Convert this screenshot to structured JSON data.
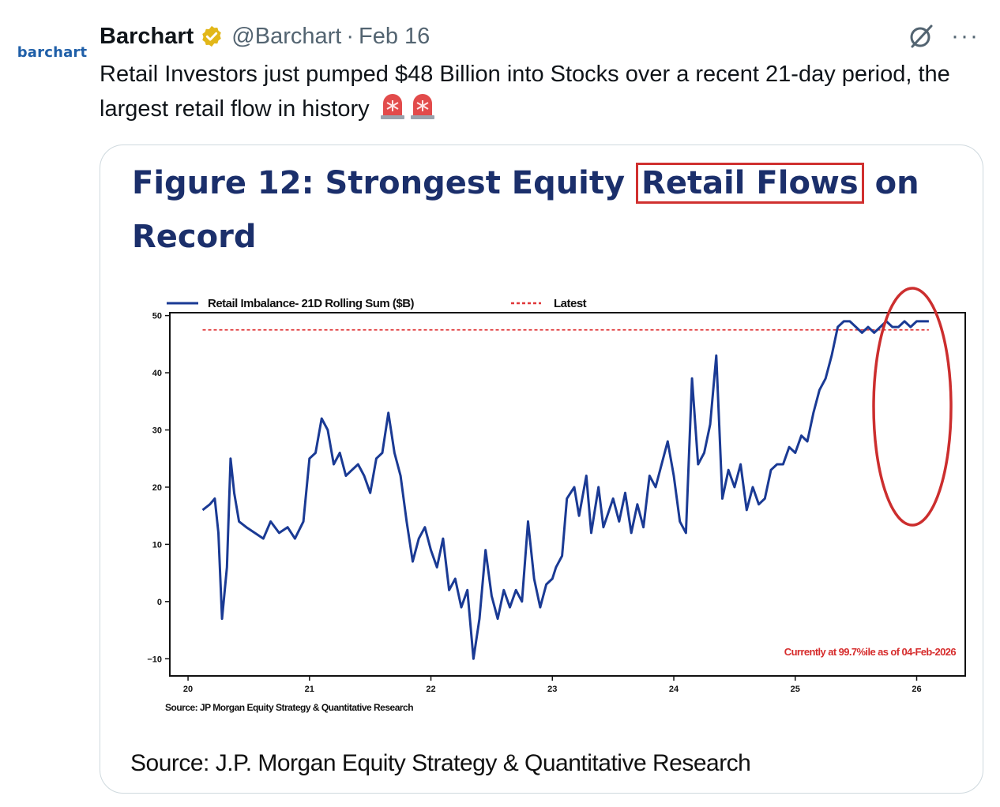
{
  "tweet": {
    "avatar_text": "barchart",
    "display_name": "Barchart",
    "handle": "@Barchart",
    "separator": "·",
    "date": "Feb 16",
    "text": "Retail Investors just pumped $48 Billion into Stocks over a recent 21-day period, the largest retail flow in history",
    "icons": [
      "verified-badge-icon",
      "grok-icon",
      "more-icon",
      "siren-icon",
      "siren-icon"
    ],
    "more_label": "···"
  },
  "figure": {
    "title_pre": "Figure 12: Strongest Equity ",
    "title_highlight": "Retail Flows",
    "title_post": " on Record",
    "source_caption": "Source: J.P. Morgan Equity Strategy & Quantitative Research"
  },
  "chart_data": {
    "type": "line",
    "title": "Figure 12: Strongest Equity Retail Flows on Record",
    "xlabel": "",
    "ylabel": "",
    "ylim": [
      -13,
      50.5
    ],
    "xlim": [
      2019.85,
      2026.4
    ],
    "yticks": [
      50,
      40,
      30,
      20,
      10,
      0,
      -10
    ],
    "ytick_labels": [
      "50",
      "40",
      "30",
      "20",
      "10",
      "0",
      "−10"
    ],
    "xticks": [
      2020,
      2021,
      2022,
      2023,
      2024,
      2025,
      2026
    ],
    "xtick_labels": [
      "20",
      "21",
      "22",
      "23",
      "24",
      "25",
      "26"
    ],
    "legend_position": "top",
    "grid": false,
    "series": [
      {
        "name": "Retail Imbalance- 21D Rolling Sum ($B)",
        "color": "#1a3a94",
        "style": "solid",
        "x": [
          2020.12,
          2020.18,
          2020.22,
          2020.25,
          2020.28,
          2020.32,
          2020.35,
          2020.38,
          2020.42,
          2020.48,
          2020.55,
          2020.62,
          2020.68,
          2020.75,
          2020.82,
          2020.88,
          2020.95,
          2021.0,
          2021.05,
          2021.1,
          2021.15,
          2021.2,
          2021.25,
          2021.3,
          2021.35,
          2021.4,
          2021.45,
          2021.5,
          2021.55,
          2021.6,
          2021.65,
          2021.7,
          2021.75,
          2021.8,
          2021.85,
          2021.9,
          2021.95,
          2022.0,
          2022.05,
          2022.1,
          2022.15,
          2022.2,
          2022.25,
          2022.3,
          2022.35,
          2022.4,
          2022.45,
          2022.5,
          2022.55,
          2022.6,
          2022.65,
          2022.7,
          2022.75,
          2022.8,
          2022.85,
          2022.9,
          2022.95,
          2023.0,
          2023.03,
          2023.08,
          2023.12,
          2023.18,
          2023.22,
          2023.28,
          2023.32,
          2023.38,
          2023.42,
          2023.5,
          2023.55,
          2023.6,
          2023.65,
          2023.7,
          2023.75,
          2023.8,
          2023.85,
          2023.9,
          2023.95,
          2024.0,
          2024.05,
          2024.1,
          2024.15,
          2024.2,
          2024.25,
          2024.3,
          2024.35,
          2024.4,
          2024.45,
          2024.5,
          2024.55,
          2024.6,
          2024.65,
          2024.7,
          2024.75,
          2024.8,
          2024.85,
          2024.9,
          2024.95,
          2025.0,
          2025.05,
          2025.1,
          2025.15,
          2025.2,
          2025.25,
          2025.3,
          2025.35,
          2025.4,
          2025.45,
          2025.5,
          2025.55,
          2025.6,
          2025.65,
          2025.7,
          2025.75,
          2025.8,
          2025.85,
          2025.9,
          2025.95,
          2026.0,
          2026.05,
          2026.1
        ],
        "values": [
          16,
          17,
          18,
          12,
          -3,
          6,
          25,
          19,
          14,
          13,
          12,
          11,
          14,
          12,
          13,
          11,
          14,
          25,
          26,
          32,
          30,
          24,
          26,
          22,
          23,
          24,
          22,
          19,
          25,
          26,
          33,
          26,
          22,
          14,
          7,
          11,
          13,
          9,
          6,
          11,
          2,
          4,
          -1,
          2,
          -10,
          -3,
          9,
          1,
          -3,
          2,
          -1,
          2,
          0,
          14,
          4,
          -1,
          3,
          4,
          6,
          8,
          18,
          20,
          15,
          22,
          12,
          20,
          13,
          18,
          14,
          19,
          12,
          17,
          13,
          22,
          20,
          24,
          28,
          22,
          14,
          12,
          39,
          24,
          26,
          31,
          43,
          18,
          23,
          20,
          24,
          16,
          20,
          17,
          18,
          23,
          24,
          24,
          27,
          26,
          29,
          28,
          33,
          37,
          39,
          43,
          48,
          49,
          49,
          48,
          47,
          48,
          47,
          48,
          49,
          48,
          48,
          49,
          48,
          49,
          49,
          49
        ]
      },
      {
        "name": "Latest",
        "color": "#e0383a",
        "style": "dashed",
        "value": 47.5
      }
    ],
    "annotations": [
      {
        "text": "Currently at 99.7%ile as of 04-Feb-2026",
        "color": "#d62c2c"
      }
    ],
    "source": "Source: JP Morgan Equity Strategy & Quantitative Research"
  }
}
